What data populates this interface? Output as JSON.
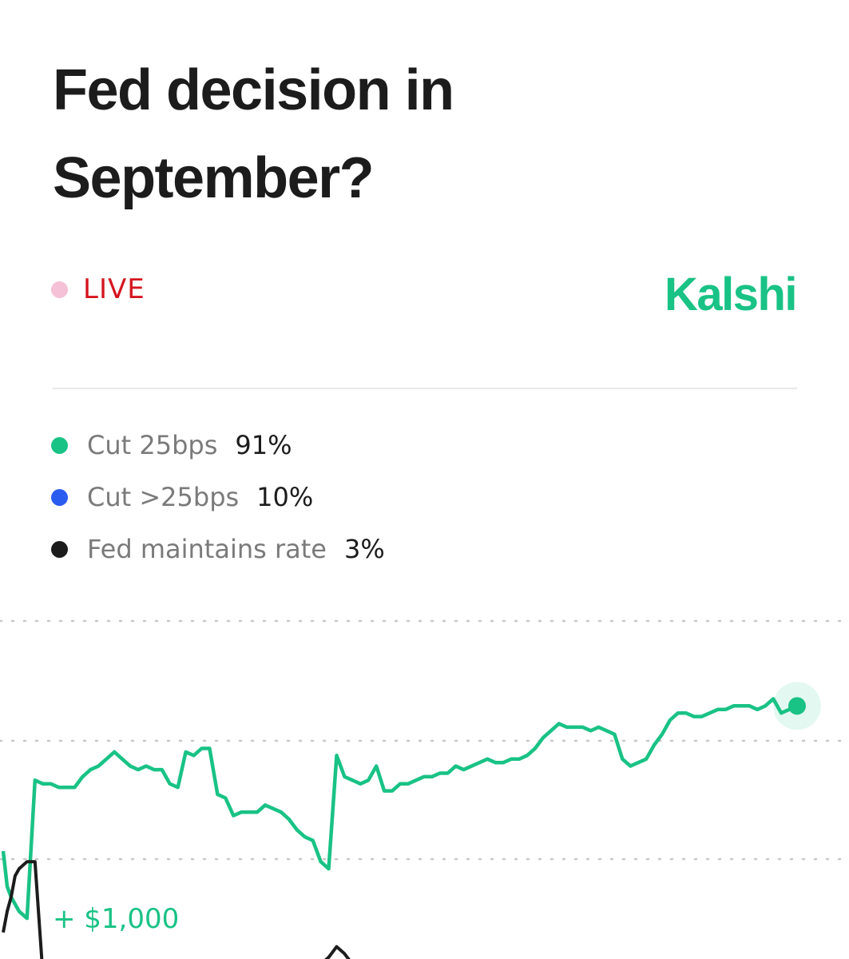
{
  "title": "Fed decision in September?",
  "status": {
    "label": "LIVE",
    "dot_color": "#f5c1d6",
    "text_color": "#d5161f"
  },
  "brand": {
    "name": "Kalshi",
    "color": "#19c285"
  },
  "legend": [
    {
      "name": "Cut 25bps",
      "value": "91%",
      "color": "#19c285"
    },
    {
      "name": "Cut >25bps",
      "value": "10%",
      "color": "#2b5cf0"
    },
    {
      "name": "Fed maintains rate",
      "value": "3%",
      "color": "#1c1c1c"
    }
  ],
  "chart_data": {
    "type": "line",
    "grid": "dotted horizontal",
    "axis_labels": "none visible",
    "annotation": "+ $1,000",
    "series": [
      {
        "name": "Cut 25bps",
        "color": "#19c285",
        "x": [
          0,
          0.5,
          1,
          1.5,
          2,
          3,
          4,
          5,
          6,
          7,
          8,
          9,
          10,
          11,
          12,
          13,
          14,
          15,
          16,
          17,
          18,
          19,
          20,
          21,
          22,
          23,
          24,
          25,
          26,
          27,
          28,
          29,
          30,
          31,
          32,
          33,
          34,
          35,
          36,
          37,
          38,
          39,
          40,
          41,
          42,
          43,
          44,
          45,
          46,
          47,
          48,
          49,
          50,
          51,
          52,
          53,
          54,
          55,
          56,
          57,
          58,
          59,
          60,
          61,
          62,
          63,
          64,
          65,
          66,
          67,
          68,
          69,
          70,
          71,
          72,
          73,
          74,
          75,
          76,
          77,
          78,
          79,
          80,
          81,
          82,
          83,
          84,
          85,
          86,
          87,
          88,
          89,
          90,
          91,
          92,
          93,
          94,
          95,
          96,
          97,
          98,
          99,
          100
        ],
        "values": [
          35,
          25,
          22,
          20,
          18,
          16,
          55,
          54,
          54,
          53,
          53,
          53,
          56,
          58,
          59,
          61,
          63,
          61,
          59,
          58,
          59,
          58,
          58,
          54,
          53,
          63,
          62,
          64,
          64,
          51,
          50,
          45,
          46,
          46,
          46,
          48,
          47,
          46,
          44,
          41,
          39,
          38,
          32,
          30,
          62,
          56,
          55,
          54,
          55,
          59,
          52,
          52,
          54,
          54,
          55,
          56,
          56,
          57,
          57,
          59,
          58,
          59,
          60,
          61,
          60,
          60,
          61,
          61,
          62,
          64,
          67,
          69,
          71,
          70,
          70,
          70,
          69,
          70,
          69,
          68,
          61,
          59,
          60,
          61,
          65,
          68,
          72,
          74,
          74,
          73,
          73,
          74,
          75,
          75,
          76,
          76,
          76,
          75,
          76,
          78,
          74,
          75,
          76
        ]
      },
      {
        "name": "Fed maintains rate",
        "color": "#1c1c1c",
        "x": [
          0,
          0.5,
          1,
          1.5,
          2,
          3,
          4,
          5,
          6,
          7,
          8,
          9,
          10,
          11,
          12,
          13,
          14,
          15,
          16,
          17,
          18,
          19,
          20,
          21,
          22,
          23,
          24,
          25,
          26,
          27,
          28,
          29,
          30,
          31,
          32,
          33,
          34,
          35,
          36,
          37,
          38,
          39,
          40,
          41,
          42,
          43,
          44,
          45,
          46
        ],
        "values": [
          12,
          18,
          22,
          28,
          30,
          32,
          32,
          0,
          0,
          0,
          0,
          0,
          0,
          0,
          0,
          0,
          0,
          0,
          0,
          0,
          0,
          0,
          0,
          0,
          0,
          0,
          0,
          0,
          0,
          0,
          0,
          0,
          0,
          0,
          0,
          0,
          0,
          0,
          0,
          0,
          0,
          1,
          3,
          5,
          8,
          6,
          3,
          0,
          0
        ]
      }
    ]
  }
}
